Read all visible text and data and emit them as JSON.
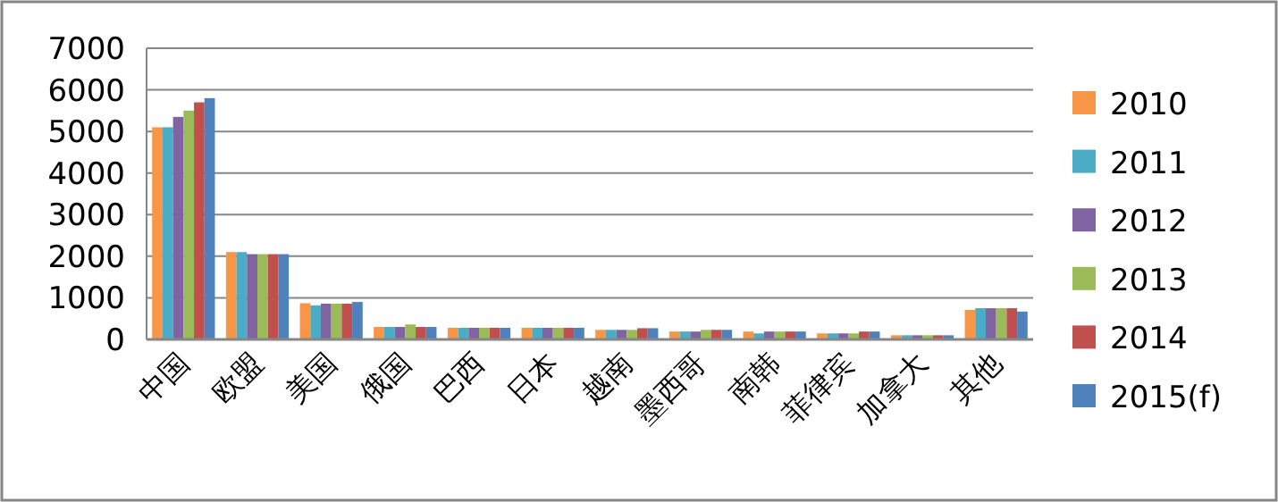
{
  "chart_data": {
    "type": "bar",
    "categories": [
      "中国",
      "欧盟",
      "美国",
      "俄国",
      "巴西",
      "日本",
      "越南",
      "墨西哥",
      "南韩",
      "菲律宾",
      "加拿大",
      "其他"
    ],
    "series": [
      {
        "name": "2010",
        "color": "#f79646",
        "values": [
          5100,
          2100,
          870,
          300,
          280,
          280,
          230,
          190,
          190,
          145,
          100,
          710
        ]
      },
      {
        "name": "2011",
        "color": "#4bacc6",
        "values": [
          5100,
          2100,
          820,
          300,
          280,
          280,
          230,
          190,
          145,
          145,
          100,
          750
        ]
      },
      {
        "name": "2012",
        "color": "#8064a2",
        "values": [
          5350,
          2050,
          860,
          300,
          280,
          280,
          230,
          190,
          190,
          145,
          100,
          750
        ]
      },
      {
        "name": "2013",
        "color": "#9bbb59",
        "values": [
          5500,
          2050,
          860,
          360,
          280,
          280,
          230,
          230,
          190,
          145,
          100,
          750
        ]
      },
      {
        "name": "2014",
        "color": "#c0504d",
        "values": [
          5700,
          2050,
          860,
          300,
          280,
          280,
          270,
          230,
          190,
          190,
          100,
          750
        ]
      },
      {
        "name": "2015(f)",
        "color": "#4f81bd",
        "values": [
          5800,
          2050,
          900,
          300,
          280,
          280,
          270,
          230,
          190,
          190,
          100,
          670
        ]
      }
    ],
    "ylim": [
      0,
      7000
    ],
    "yticks": [
      0,
      1000,
      2000,
      3000,
      4000,
      5000,
      6000,
      7000
    ],
    "grid": "y",
    "legend": "right"
  }
}
